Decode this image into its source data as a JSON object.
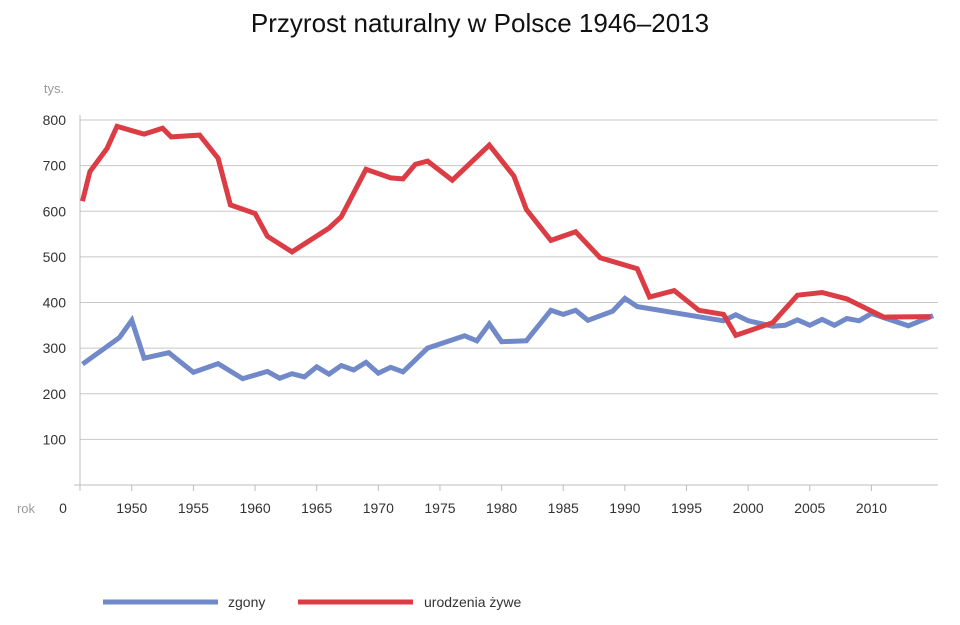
{
  "chart_data": {
    "type": "line",
    "title": "Przyrost naturalny w Polsce 1946–2013",
    "ylabel": "tys.",
    "xlabel": "rok",
    "x_origin_label": "0",
    "xlim": [
      1945.8,
      2015.4
    ],
    "ylim": [
      0,
      800
    ],
    "yticks": [
      100,
      200,
      300,
      400,
      500,
      600,
      700,
      800
    ],
    "xticks": [
      1950,
      1955,
      1960,
      1965,
      1970,
      1975,
      1980,
      1985,
      1990,
      1995,
      2000,
      2005,
      2010
    ],
    "grid": true,
    "legend_position": "bottom",
    "series": [
      {
        "name": "zgony",
        "color": "#7289c9",
        "points": [
          [
            1946,
            265
          ],
          [
            1949,
            323
          ],
          [
            1950,
            361
          ],
          [
            1951,
            278
          ],
          [
            1953,
            290
          ],
          [
            1955,
            247
          ],
          [
            1957,
            266
          ],
          [
            1959,
            233
          ],
          [
            1961,
            249
          ],
          [
            1962,
            234
          ],
          [
            1963,
            244
          ],
          [
            1964,
            237
          ],
          [
            1965,
            259
          ],
          [
            1966,
            243
          ],
          [
            1967,
            262
          ],
          [
            1968,
            252
          ],
          [
            1969,
            269
          ],
          [
            1970,
            245
          ],
          [
            1971,
            258
          ],
          [
            1972,
            248
          ],
          [
            1974,
            300
          ],
          [
            1977,
            327
          ],
          [
            1978,
            316
          ],
          [
            1979,
            353
          ],
          [
            1980,
            314
          ],
          [
            1982,
            316
          ],
          [
            1984,
            383
          ],
          [
            1985,
            374
          ],
          [
            1986,
            383
          ],
          [
            1987,
            361
          ],
          [
            1989,
            381
          ],
          [
            1990,
            409
          ],
          [
            1991,
            391
          ],
          [
            1998,
            360
          ],
          [
            1999,
            373
          ],
          [
            2000,
            360
          ],
          [
            2002,
            348
          ],
          [
            2003,
            350
          ],
          [
            2004,
            362
          ],
          [
            2005,
            350
          ],
          [
            2006,
            363
          ],
          [
            2007,
            350
          ],
          [
            2008,
            365
          ],
          [
            2009,
            360
          ],
          [
            2010,
            376
          ],
          [
            2013,
            349
          ],
          [
            2015,
            371
          ]
        ]
      },
      {
        "name": "urodzenia żywe",
        "color": "#dc3c44",
        "points": [
          [
            1946,
            622
          ],
          [
            1946.6,
            687
          ],
          [
            1948,
            738
          ],
          [
            1948.8,
            786
          ],
          [
            1951,
            769
          ],
          [
            1952.5,
            782
          ],
          [
            1953.2,
            763
          ],
          [
            1955.5,
            767
          ],
          [
            1957,
            716
          ],
          [
            1958,
            614
          ],
          [
            1960,
            595
          ],
          [
            1961,
            545
          ],
          [
            1963,
            511
          ],
          [
            1966,
            563
          ],
          [
            1967,
            588
          ],
          [
            1969,
            692
          ],
          [
            1971,
            673
          ],
          [
            1972,
            671
          ],
          [
            1973,
            703
          ],
          [
            1974,
            710
          ],
          [
            1976,
            668
          ],
          [
            1979,
            745
          ],
          [
            1981,
            677
          ],
          [
            1982,
            604
          ],
          [
            1984,
            536
          ],
          [
            1986,
            555
          ],
          [
            1988,
            498
          ],
          [
            1991,
            474
          ],
          [
            1992,
            412
          ],
          [
            1994,
            426
          ],
          [
            1996,
            383
          ],
          [
            1998,
            374
          ],
          [
            1999,
            328
          ],
          [
            2002,
            356
          ],
          [
            2004,
            416
          ],
          [
            2006,
            422
          ],
          [
            2008,
            408
          ],
          [
            2011,
            368
          ],
          [
            2014.8,
            369
          ]
        ]
      }
    ]
  }
}
